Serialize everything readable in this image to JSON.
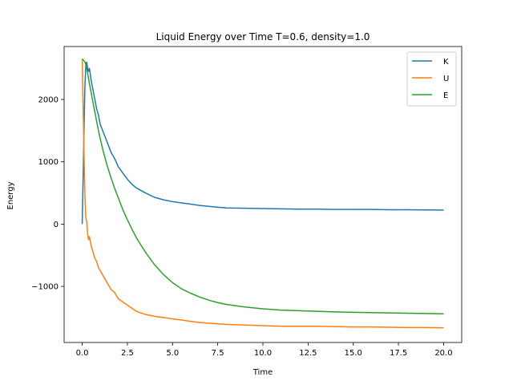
{
  "chart_data": {
    "type": "line",
    "title": "Liquid Energy over Time T=0.6, density=1.0",
    "xlabel": "Time",
    "ylabel": "Energy",
    "xlim": [
      -1.0,
      21.0
    ],
    "ylim": [
      -1900,
      2850
    ],
    "xticks": [
      0.0,
      2.5,
      5.0,
      7.5,
      10.0,
      12.5,
      15.0,
      17.5,
      20.0
    ],
    "xtick_labels": [
      "0.0",
      "2.5",
      "5.0",
      "7.5",
      "10.0",
      "12.5",
      "15.0",
      "17.5",
      "20.0"
    ],
    "yticks": [
      -1000,
      0,
      1000,
      2000
    ],
    "ytick_labels": [
      "−1000",
      "0",
      "1000",
      "2000"
    ],
    "grid": false,
    "legend_position": "top-right",
    "series": [
      {
        "name": "K",
        "color": "#1f77b4",
        "x": [
          0.0,
          0.05,
          0.1,
          0.15,
          0.2,
          0.25,
          0.3,
          0.35,
          0.4,
          0.5,
          0.6,
          0.7,
          0.8,
          0.9,
          1.0,
          1.2,
          1.4,
          1.6,
          1.8,
          2.0,
          2.25,
          2.5,
          2.75,
          3.0,
          3.5,
          4.0,
          4.5,
          5.0,
          5.5,
          6.0,
          6.5,
          7.0,
          7.5,
          8.0,
          9.0,
          10.0,
          11.0,
          12.0,
          13.0,
          14.0,
          15.0,
          16.0,
          17.0,
          18.0,
          19.0,
          20.0
        ],
        "y": [
          0,
          700,
          1500,
          2200,
          2550,
          2600,
          2500,
          2450,
          2500,
          2300,
          2150,
          2000,
          1850,
          1750,
          1600,
          1450,
          1300,
          1150,
          1050,
          920,
          820,
          720,
          640,
          580,
          500,
          430,
          390,
          360,
          340,
          320,
          300,
          285,
          270,
          260,
          255,
          250,
          245,
          240,
          240,
          235,
          235,
          235,
          230,
          230,
          228,
          225
        ]
      },
      {
        "name": "U",
        "color": "#ff7f0e",
        "x": [
          0.0,
          0.05,
          0.1,
          0.15,
          0.2,
          0.25,
          0.3,
          0.35,
          0.4,
          0.5,
          0.6,
          0.7,
          0.8,
          0.9,
          1.0,
          1.2,
          1.4,
          1.6,
          1.8,
          2.0,
          2.25,
          2.5,
          2.75,
          3.0,
          3.5,
          4.0,
          4.5,
          5.0,
          5.5,
          6.0,
          6.5,
          7.0,
          7.5,
          8.0,
          9.0,
          10.0,
          11.0,
          12.0,
          13.0,
          14.0,
          15.0,
          16.0,
          17.0,
          18.0,
          19.0,
          20.0
        ],
        "y": [
          2650,
          1950,
          1150,
          450,
          100,
          50,
          -150,
          -250,
          -200,
          -350,
          -450,
          -550,
          -600,
          -700,
          -750,
          -850,
          -950,
          -1050,
          -1100,
          -1200,
          -1250,
          -1300,
          -1350,
          -1400,
          -1450,
          -1480,
          -1500,
          -1520,
          -1540,
          -1560,
          -1580,
          -1590,
          -1600,
          -1610,
          -1620,
          -1630,
          -1640,
          -1640,
          -1640,
          -1645,
          -1650,
          -1650,
          -1655,
          -1660,
          -1660,
          -1665
        ]
      },
      {
        "name": "E",
        "color": "#2ca02c",
        "x": [
          0.0,
          0.05,
          0.1,
          0.15,
          0.2,
          0.25,
          0.3,
          0.35,
          0.4,
          0.5,
          0.6,
          0.7,
          0.8,
          0.9,
          1.0,
          1.2,
          1.4,
          1.6,
          1.8,
          2.0,
          2.25,
          2.5,
          2.75,
          3.0,
          3.5,
          4.0,
          4.5,
          5.0,
          5.5,
          6.0,
          6.5,
          7.0,
          7.5,
          8.0,
          9.0,
          10.0,
          11.0,
          12.0,
          13.0,
          14.0,
          15.0,
          16.0,
          17.0,
          18.0,
          19.0,
          20.0
        ],
        "y": [
          2650,
          2640,
          2620,
          2600,
          2560,
          2500,
          2420,
          2340,
          2260,
          2100,
          1950,
          1800,
          1650,
          1500,
          1370,
          1130,
          920,
          740,
          570,
          420,
          230,
          70,
          -80,
          -220,
          -450,
          -650,
          -810,
          -940,
          -1040,
          -1110,
          -1170,
          -1220,
          -1260,
          -1290,
          -1330,
          -1360,
          -1380,
          -1390,
          -1400,
          -1410,
          -1415,
          -1420,
          -1425,
          -1430,
          -1435,
          -1440
        ]
      }
    ]
  }
}
